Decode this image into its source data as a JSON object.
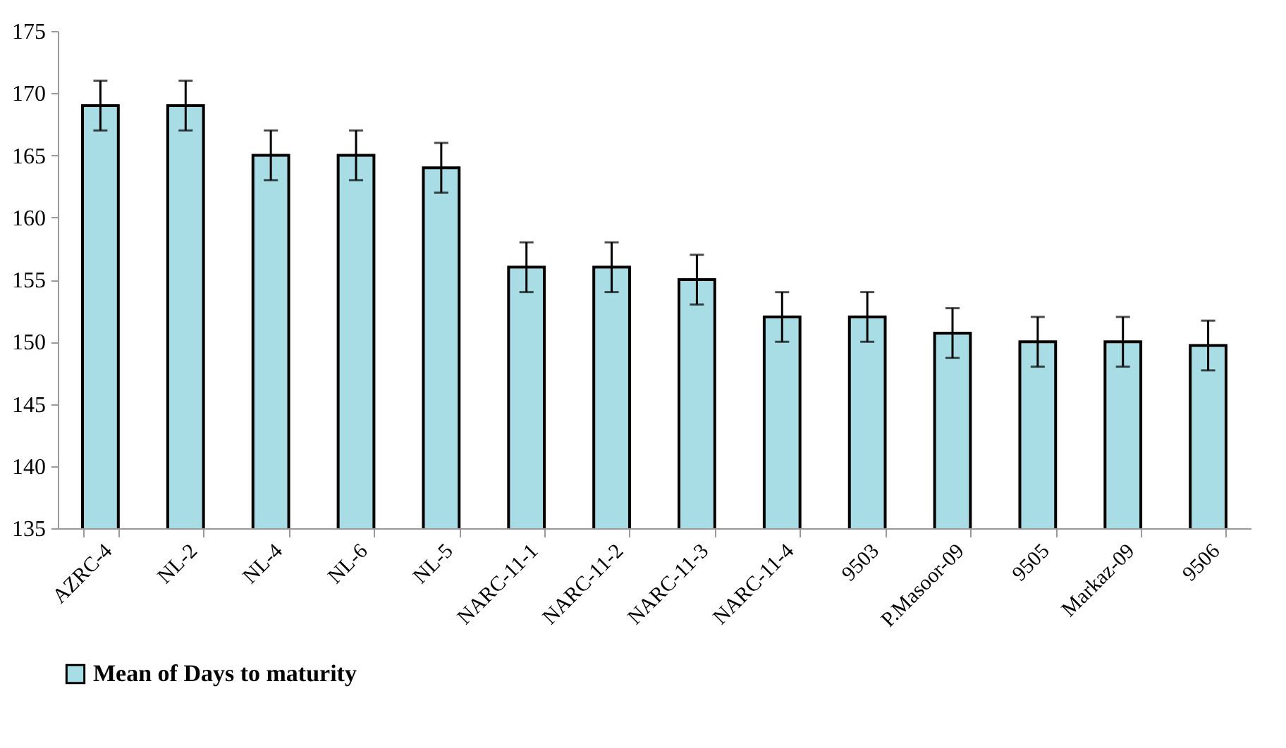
{
  "chart_data": {
    "type": "bar",
    "categories": [
      "AZRC-4",
      "NL-2",
      "NL-4",
      "NL-6",
      "NL-5",
      "NARC-11-1",
      "NARC-11-2",
      "NARC-11-3",
      "NARC-11-4",
      "9503",
      "P.Masoor-09",
      "9505",
      "Markaz-09",
      "9506"
    ],
    "series": [
      {
        "name": "Mean of  Days to maturity",
        "color": "#a8dde6",
        "values": [
          169,
          169,
          165,
          165,
          164,
          156,
          156,
          155,
          152,
          152,
          150.7,
          150,
          150,
          149.7
        ],
        "errors": [
          2,
          2,
          2,
          2,
          2,
          2,
          2,
          2,
          2,
          2,
          2,
          2,
          2,
          2
        ]
      }
    ],
    "ylim": [
      135,
      175
    ],
    "yticks": [
      135,
      140,
      145,
      150,
      155,
      160,
      165,
      170,
      175
    ],
    "grid": false,
    "legend": "bottom"
  }
}
